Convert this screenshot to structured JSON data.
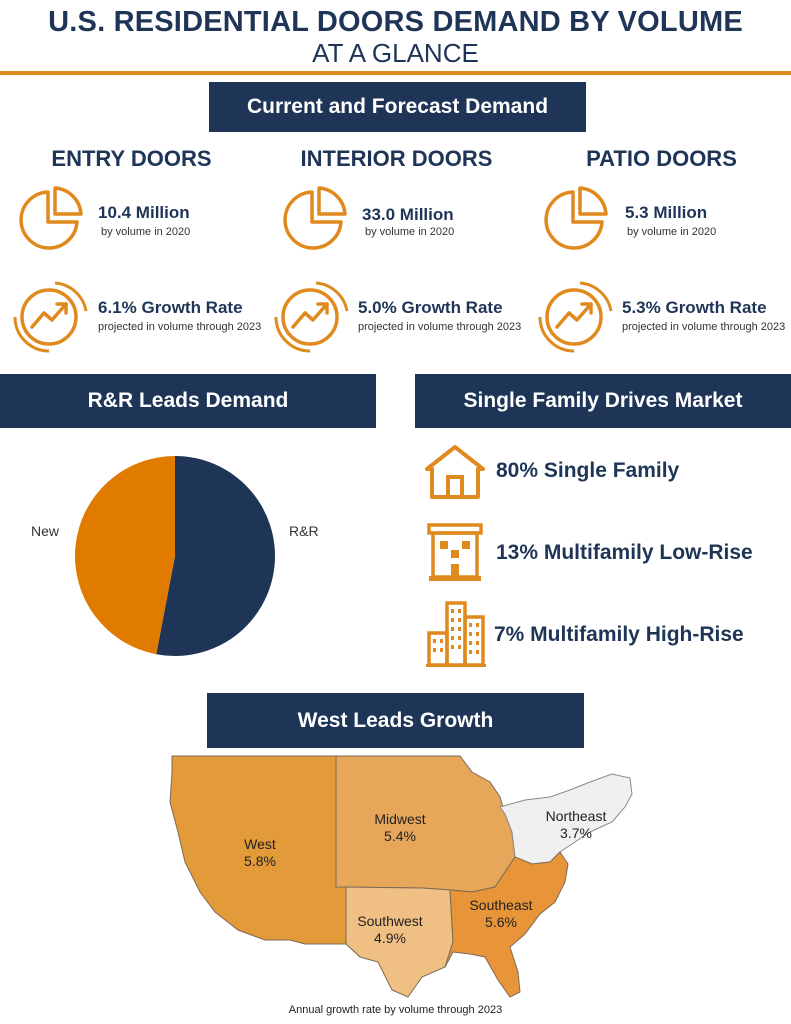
{
  "header": {
    "title": "U.S. RESIDENTIAL DOORS DEMAND BY VOLUME",
    "subtitle": "AT A GLANCE"
  },
  "colors": {
    "navy": "#1f3557",
    "orange": "#e08a1e"
  },
  "current_forecast": {
    "banner": "Current and Forecast Demand",
    "columns": [
      {
        "title": "ENTRY DOORS",
        "volume": "10.4 Million",
        "volume_note": "by volume in 2020",
        "growth": "6.1% Growth Rate",
        "growth_note": "projected in volume through 2023"
      },
      {
        "title": "INTERIOR DOORS",
        "volume": "33.0 Million",
        "volume_note": "by volume in 2020",
        "growth": "5.0% Growth Rate",
        "growth_note": "projected in volume through 2023"
      },
      {
        "title": "PATIO DOORS",
        "volume": "5.3 Million",
        "volume_note": "by volume in 2020",
        "growth": "5.3% Growth Rate",
        "growth_note": "projected in volume through 2023"
      }
    ],
    "icons": [
      "pie-chart-icon",
      "growth-arrow-icon"
    ]
  },
  "rr_leads": {
    "banner": "R&R Leads Demand",
    "chart_data": {
      "type": "pie",
      "slices": [
        {
          "label": "R&R",
          "value": 53,
          "color": "#1f3557"
        },
        {
          "label": "New",
          "value": 47,
          "color": "#e07b00"
        }
      ]
    }
  },
  "single_family": {
    "banner": "Single Family Drives Market",
    "items": [
      {
        "icon": "house-icon",
        "text": "80% Single Family"
      },
      {
        "icon": "low-rise-building-icon",
        "text": "13% Multifamily Low-Rise"
      },
      {
        "icon": "high-rise-building-icon",
        "text": "7% Multifamily High-Rise"
      }
    ]
  },
  "regions": {
    "banner": "West Leads Growth",
    "items": [
      {
        "name": "West",
        "value": "5.8%"
      },
      {
        "name": "Midwest",
        "value": "5.4%"
      },
      {
        "name": "Northeast",
        "value": "3.7%"
      },
      {
        "name": "Southwest",
        "value": "4.9%"
      },
      {
        "name": "Southeast",
        "value": "5.6%"
      }
    ],
    "caption": "Annual growth rate by volume through 2023"
  }
}
